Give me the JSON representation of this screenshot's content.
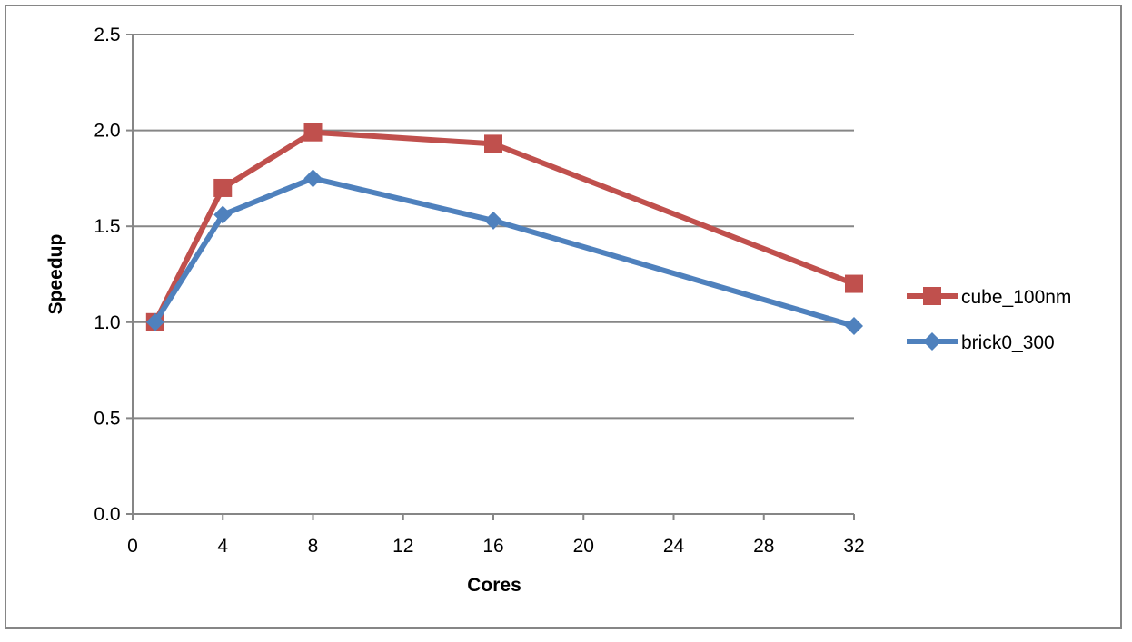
{
  "chart_data": {
    "type": "line",
    "xlabel": "Cores",
    "ylabel": "Speedup",
    "xlim": [
      0,
      32
    ],
    "ylim": [
      0,
      2.5
    ],
    "xticks": [
      "0",
      "4",
      "8",
      "12",
      "16",
      "20",
      "24",
      "28",
      "32"
    ],
    "yticks": [
      "0.0",
      "0.5",
      "1.0",
      "1.5",
      "2.0",
      "2.5"
    ],
    "grid": "horizontal",
    "legend_position": "right",
    "series": [
      {
        "name": "cube_100nm",
        "color": "#C0504D",
        "marker": "square",
        "x": [
          1,
          4,
          8,
          16,
          32
        ],
        "y": [
          1.0,
          1.7,
          1.99,
          1.93,
          1.2
        ]
      },
      {
        "name": "brick0_300",
        "color": "#4F81BD",
        "marker": "diamond",
        "x": [
          1,
          4,
          8,
          16,
          32
        ],
        "y": [
          1.0,
          1.56,
          1.75,
          1.53,
          0.98
        ]
      }
    ]
  }
}
